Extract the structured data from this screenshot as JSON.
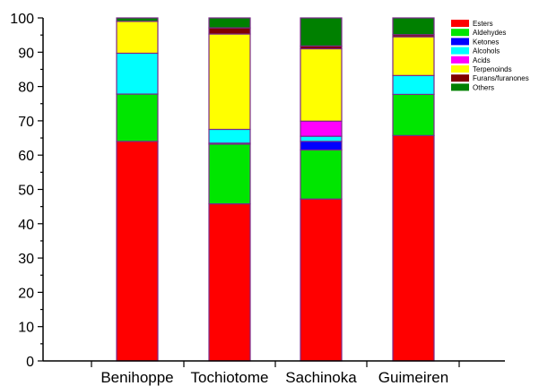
{
  "chart_data": {
    "type": "bar",
    "stacked": true,
    "categories": [
      "Benihoppe",
      "Tochiotome",
      "Sachinoka",
      "Guimeiren"
    ],
    "ylim": [
      0,
      100
    ],
    "yticks": [
      0,
      10,
      20,
      30,
      40,
      50,
      60,
      70,
      80,
      90,
      100
    ],
    "xlabel": "",
    "ylabel": "",
    "title": "",
    "legend_position": "top-right",
    "grid": false,
    "series": [
      {
        "name": "Esters",
        "color": "#ff0000",
        "values": [
          64.0,
          45.8,
          47.2,
          65.7
        ]
      },
      {
        "name": "Aldehydes",
        "color": "#00e600",
        "values": [
          13.8,
          17.4,
          14.3,
          12.0
        ]
      },
      {
        "name": "Ketones",
        "color": "#0000ff",
        "values": [
          0.0,
          0.3,
          2.5,
          0.0
        ]
      },
      {
        "name": "Alcohols",
        "color": "#00ffff",
        "values": [
          11.9,
          4.0,
          1.5,
          5.5
        ]
      },
      {
        "name": "Acids",
        "color": "#ff00ff",
        "values": [
          0.0,
          0.0,
          4.4,
          0.0
        ]
      },
      {
        "name": "Terpenoinds",
        "color": "#ffff00",
        "values": [
          9.3,
          27.8,
          21.1,
          11.3
        ]
      },
      {
        "name": "Furans/furanones",
        "color": "#800000",
        "values": [
          0.0,
          1.8,
          0.8,
          0.6
        ]
      },
      {
        "name": "Others",
        "color": "#008000",
        "values": [
          1.0,
          2.9,
          8.2,
          4.9
        ]
      }
    ]
  }
}
